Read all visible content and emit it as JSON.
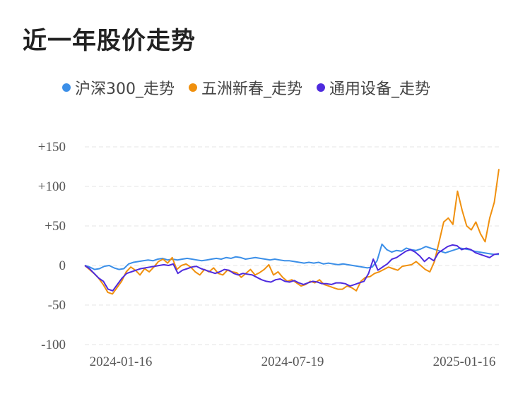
{
  "title": "近一年股价走势",
  "chart_data": {
    "type": "line",
    "ylim": [
      -100,
      150
    ],
    "yticks": [
      "+150",
      "+100",
      "+50",
      "0",
      "-50",
      "-100"
    ],
    "ytick_values": [
      150,
      100,
      50,
      0,
      -50,
      -100
    ],
    "xticks": [
      "2024-01-16",
      "2024-07-19",
      "2025-01-16"
    ],
    "grid": true,
    "legend_position": "top",
    "series": [
      {
        "name": "沪深300_走势",
        "color": "#3b8fe8",
        "values": [
          0,
          -2,
          -5,
          -4,
          -1,
          0,
          -3,
          -5,
          -4,
          2,
          4,
          5,
          6,
          7,
          6,
          8,
          9,
          7,
          8,
          7,
          8,
          9,
          8,
          7,
          6,
          7,
          8,
          9,
          8,
          10,
          9,
          11,
          10,
          8,
          9,
          10,
          9,
          8,
          7,
          8,
          7,
          6,
          6,
          5,
          4,
          3,
          4,
          3,
          4,
          2,
          3,
          2,
          1,
          2,
          1,
          0,
          -1,
          -2,
          -3,
          -2,
          6,
          27,
          20,
          17,
          19,
          18,
          22,
          20,
          19,
          21,
          24,
          22,
          20,
          18,
          16,
          18,
          20,
          22,
          21,
          20,
          18,
          17,
          16,
          15,
          14,
          14
        ]
      },
      {
        "name": "五洲新春_走势",
        "color": "#f0900e",
        "values": [
          0,
          -5,
          -10,
          -16,
          -24,
          -34,
          -36,
          -28,
          -20,
          -8,
          -2,
          -6,
          -12,
          -4,
          -8,
          -2,
          5,
          8,
          3,
          10,
          -5,
          0,
          2,
          -2,
          -8,
          -12,
          -5,
          -8,
          -3,
          -10,
          -12,
          -6,
          -8,
          -9,
          -15,
          -10,
          -5,
          -12,
          -9,
          -5,
          1,
          -12,
          -8,
          -15,
          -20,
          -18,
          -22,
          -26,
          -24,
          -20,
          -22,
          -18,
          -24,
          -26,
          -28,
          -30,
          -30,
          -26,
          -28,
          -32,
          -20,
          -15,
          -14,
          -10,
          -8,
          -5,
          -2,
          -4,
          -6,
          -1,
          0,
          1,
          5,
          0,
          -5,
          -8,
          5,
          30,
          55,
          60,
          52,
          94,
          70,
          50,
          45,
          55,
          40,
          30,
          60,
          80,
          122
        ]
      },
      {
        "name": "通用设备_走势",
        "color": "#4e2bde",
        "values": [
          0,
          -4,
          -10,
          -16,
          -20,
          -30,
          -32,
          -24,
          -16,
          -10,
          -8,
          -6,
          -4,
          -3,
          -2,
          -1,
          0,
          1,
          0,
          2,
          -10,
          -6,
          -4,
          -2,
          -1,
          -4,
          -6,
          -8,
          -10,
          -8,
          -5,
          -6,
          -10,
          -12,
          -10,
          -11,
          -12,
          -15,
          -18,
          -20,
          -21,
          -18,
          -17,
          -20,
          -21,
          -19,
          -22,
          -24,
          -22,
          -20,
          -21,
          -23,
          -23,
          -24,
          -22,
          -22,
          -23,
          -26,
          -24,
          -22,
          -20,
          -10,
          8,
          -6,
          -2,
          2,
          8,
          10,
          14,
          18,
          20,
          17,
          12,
          5,
          10,
          6,
          16,
          20,
          24,
          26,
          25,
          20,
          22,
          20,
          16,
          14,
          12,
          10,
          14,
          15
        ]
      }
    ]
  }
}
